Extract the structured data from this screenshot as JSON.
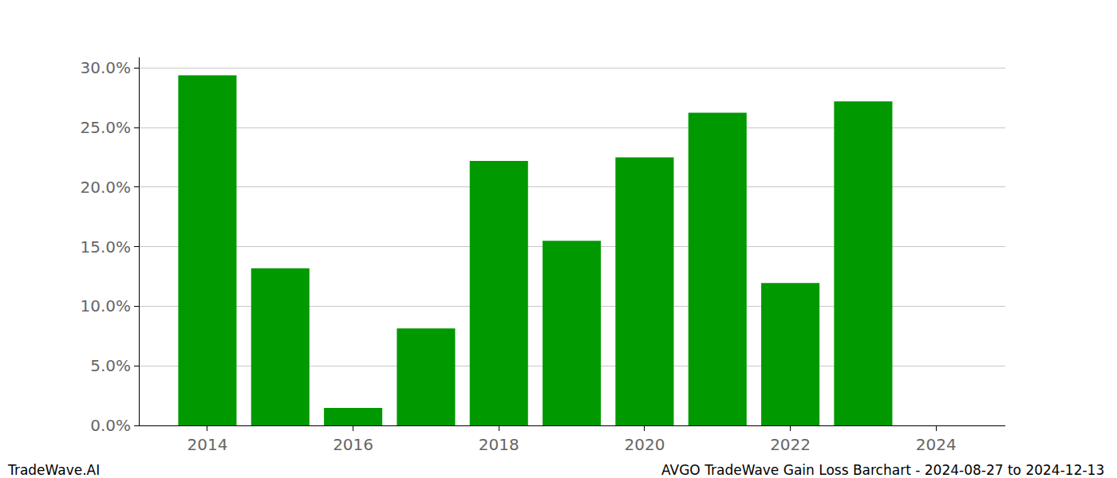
{
  "chart_data": {
    "type": "bar",
    "x": [
      2014,
      2015,
      2016,
      2017,
      2018,
      2019,
      2020,
      2021,
      2022,
      2023
    ],
    "values": [
      29.4,
      13.2,
      1.47,
      8.15,
      22.2,
      15.5,
      22.5,
      26.25,
      11.96,
      27.2
    ],
    "color": "#009900",
    "xlim": [
      2013.07,
      2024.95
    ],
    "xticks": [
      2014,
      2016,
      2018,
      2020,
      2022,
      2024
    ],
    "ylim": [
      0,
      30.9
    ],
    "yticks": [
      {
        "value": 0,
        "label": "0.0%"
      },
      {
        "value": 5,
        "label": "5.0%"
      },
      {
        "value": 10,
        "label": "10.0%"
      },
      {
        "value": 15,
        "label": "15.0%"
      },
      {
        "value": 20,
        "label": "20.0%"
      },
      {
        "value": 25,
        "label": "25.0%"
      },
      {
        "value": 30,
        "label": "30.0%"
      }
    ],
    "grid": true,
    "footer_left": "TradeWave.AI",
    "footer_right": "AVGO TradeWave Gain Loss Barchart - 2024-08-27 to 2024-12-13"
  }
}
